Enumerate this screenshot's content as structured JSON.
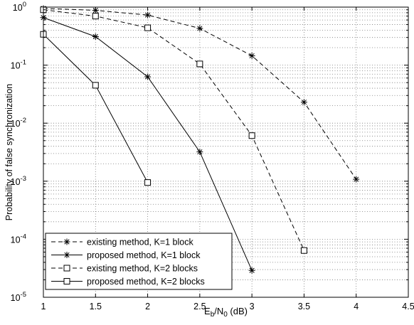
{
  "chart_data": {
    "type": "line",
    "title": "",
    "xlabel": "E_b/N_0 (dB)",
    "xlabel_parts": {
      "main": "E",
      "sub1": "b",
      "mid": "/N",
      "sub2": "0",
      "tail": " (dB)"
    },
    "ylabel": "Probability of false synchronization",
    "xlim": [
      1,
      4.5
    ],
    "ylim": [
      1e-05,
      1
    ],
    "yscale": "log",
    "grid": true,
    "legend_position": "bottom-left",
    "x_ticks": [
      "1",
      "1.5",
      "2",
      "2.5",
      "3",
      "3.5",
      "4",
      "4.5"
    ],
    "y_ticks": [
      {
        "base": "10",
        "exp": "0",
        "value": 1
      },
      {
        "base": "10",
        "exp": "-1",
        "value": 0.1
      },
      {
        "base": "10",
        "exp": "-2",
        "value": 0.01
      },
      {
        "base": "10",
        "exp": "-3",
        "value": 0.001
      },
      {
        "base": "10",
        "exp": "-4",
        "value": 0.0001
      },
      {
        "base": "10",
        "exp": "-5",
        "value": 1e-05
      }
    ],
    "series": [
      {
        "name": "existing method, K=1 block",
        "line_style": "dashed",
        "marker": "star",
        "x": [
          1,
          1.5,
          2,
          2.5,
          3,
          3.5,
          4
        ],
        "y": [
          0.95,
          0.88,
          0.73,
          0.43,
          0.145,
          0.023,
          0.00108
        ]
      },
      {
        "name": "proposed method, K=1 block",
        "line_style": "solid",
        "marker": "star",
        "x": [
          1,
          1.5,
          2,
          2.5,
          3
        ],
        "y": [
          0.66,
          0.31,
          0.063,
          0.0032,
          2.9e-05
        ]
      },
      {
        "name": "existing method, K=2 blocks",
        "line_style": "dashed",
        "marker": "square",
        "x": [
          1,
          1.5,
          2,
          2.5,
          3,
          3.5
        ],
        "y": [
          0.9,
          0.7,
          0.44,
          0.105,
          0.0061,
          6.4e-05
        ]
      },
      {
        "name": "proposed method, K=2 blocks",
        "line_style": "solid",
        "marker": "square",
        "x": [
          1,
          1.5,
          2
        ],
        "y": [
          0.34,
          0.045,
          0.00095
        ]
      }
    ]
  },
  "colors": {
    "line": "#000000",
    "grid": "#777777",
    "background": "#ffffff"
  }
}
